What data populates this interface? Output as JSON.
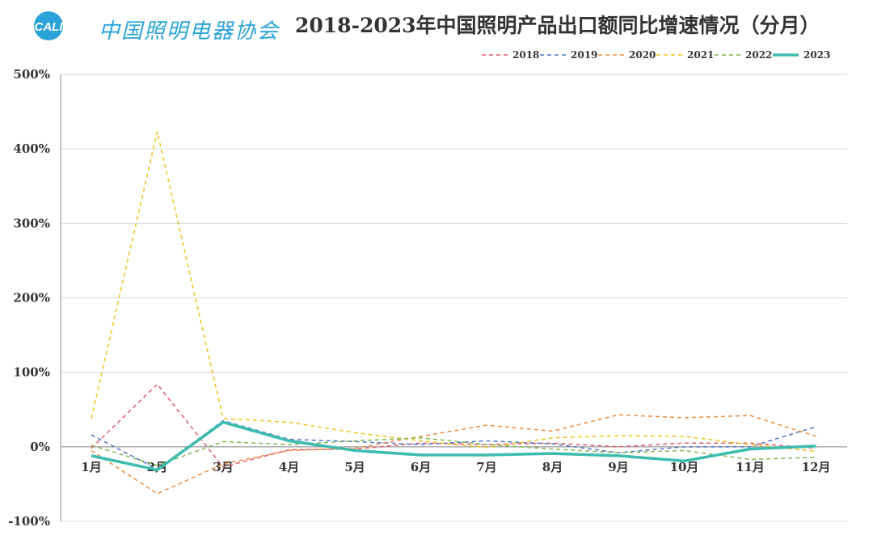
{
  "header": {
    "logo_badge": "CALI",
    "logo_text": "中国照明电器协会",
    "title": "2018-2023年中国照明产品出口额同比增速情况（分月）"
  },
  "colors": {
    "2018": "#e05a6a",
    "2019": "#4f74c4",
    "2020": "#ee8a3c",
    "2021": "#f2c21b",
    "2022": "#7fb84f",
    "2023": "#3cbcae",
    "logo": "#2aa3d9",
    "grid": "#d9d9d9"
  },
  "chart_data": {
    "type": "line",
    "title": "2018-2023年中国照明产品出口额同比增速情况（分月）",
    "categories": [
      "1月",
      "2月",
      "3月",
      "4月",
      "5月",
      "6月",
      "7月",
      "8月",
      "9月",
      "10月",
      "11月",
      "12月"
    ],
    "y_ticks": [
      "500%",
      "400%",
      "300%",
      "200%",
      "100%",
      "0%",
      "-100%"
    ],
    "ylim": [
      -100,
      500
    ],
    "y_unit": "%",
    "grid": true,
    "legend_position": "top-right",
    "series": [
      {
        "name": "2018",
        "style": "dashed",
        "values": [
          -2,
          84,
          -27,
          -4,
          -3,
          5,
          3,
          5,
          0,
          5,
          5,
          -2
        ]
      },
      {
        "name": "2019",
        "style": "dashed",
        "values": [
          16,
          -30,
          35,
          10,
          7,
          3,
          8,
          4,
          -8,
          0,
          0,
          27
        ]
      },
      {
        "name": "2020",
        "style": "dashed",
        "values": [
          -5,
          -63,
          -23,
          -5,
          -2,
          14,
          29,
          21,
          43,
          39,
          42,
          14
        ]
      },
      {
        "name": "2021",
        "style": "dashed",
        "values": [
          38,
          423,
          38,
          33,
          19,
          8,
          -1,
          12,
          15,
          14,
          3,
          -6
        ]
      },
      {
        "name": "2022",
        "style": "dashed",
        "values": [
          2,
          -25,
          7,
          3,
          8,
          12,
          3,
          -3,
          -8,
          -5,
          -17,
          -14
        ]
      },
      {
        "name": "2023",
        "style": "solid",
        "values": [
          -12,
          -31,
          33,
          8,
          -5,
          -11,
          -11,
          -9,
          -12,
          -19,
          -3,
          1
        ]
      }
    ]
  }
}
